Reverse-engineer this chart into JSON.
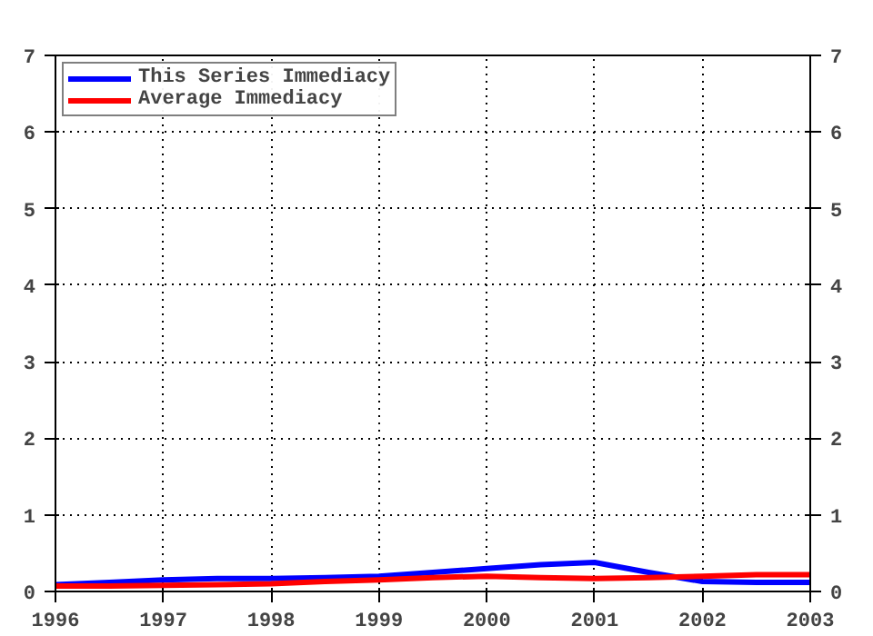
{
  "chart_data": {
    "type": "line",
    "x": [
      1996,
      1996.5,
      1997,
      1997.5,
      1998,
      1998.5,
      1999,
      1999.5,
      2000,
      2000.5,
      2001,
      2001.5,
      2002,
      2002.5,
      2003
    ],
    "series": [
      {
        "name": "This Series Immediacy",
        "color": "#0000ff",
        "values": [
          0.09,
          0.12,
          0.15,
          0.17,
          0.17,
          0.18,
          0.2,
          0.25,
          0.3,
          0.35,
          0.38,
          0.25,
          0.13,
          0.12,
          0.12
        ]
      },
      {
        "name": "Average Immediacy",
        "color": "#ff0000",
        "values": [
          0.07,
          0.07,
          0.08,
          0.09,
          0.1,
          0.13,
          0.15,
          0.18,
          0.2,
          0.18,
          0.17,
          0.18,
          0.2,
          0.22,
          0.22
        ]
      }
    ],
    "xlim": [
      1996,
      2003
    ],
    "xticks": [
      1996,
      1997,
      1998,
      1999,
      2000,
      2001,
      2002,
      2003
    ],
    "ylim": [
      0,
      7
    ],
    "yticks": [
      0,
      1,
      2,
      3,
      4,
      5,
      6,
      7
    ],
    "y2lim": [
      0,
      7
    ],
    "y2ticks": [
      0,
      1,
      2,
      3,
      4,
      5,
      6,
      7
    ],
    "grid": true,
    "legend": "top left",
    "line_style": "solid"
  }
}
